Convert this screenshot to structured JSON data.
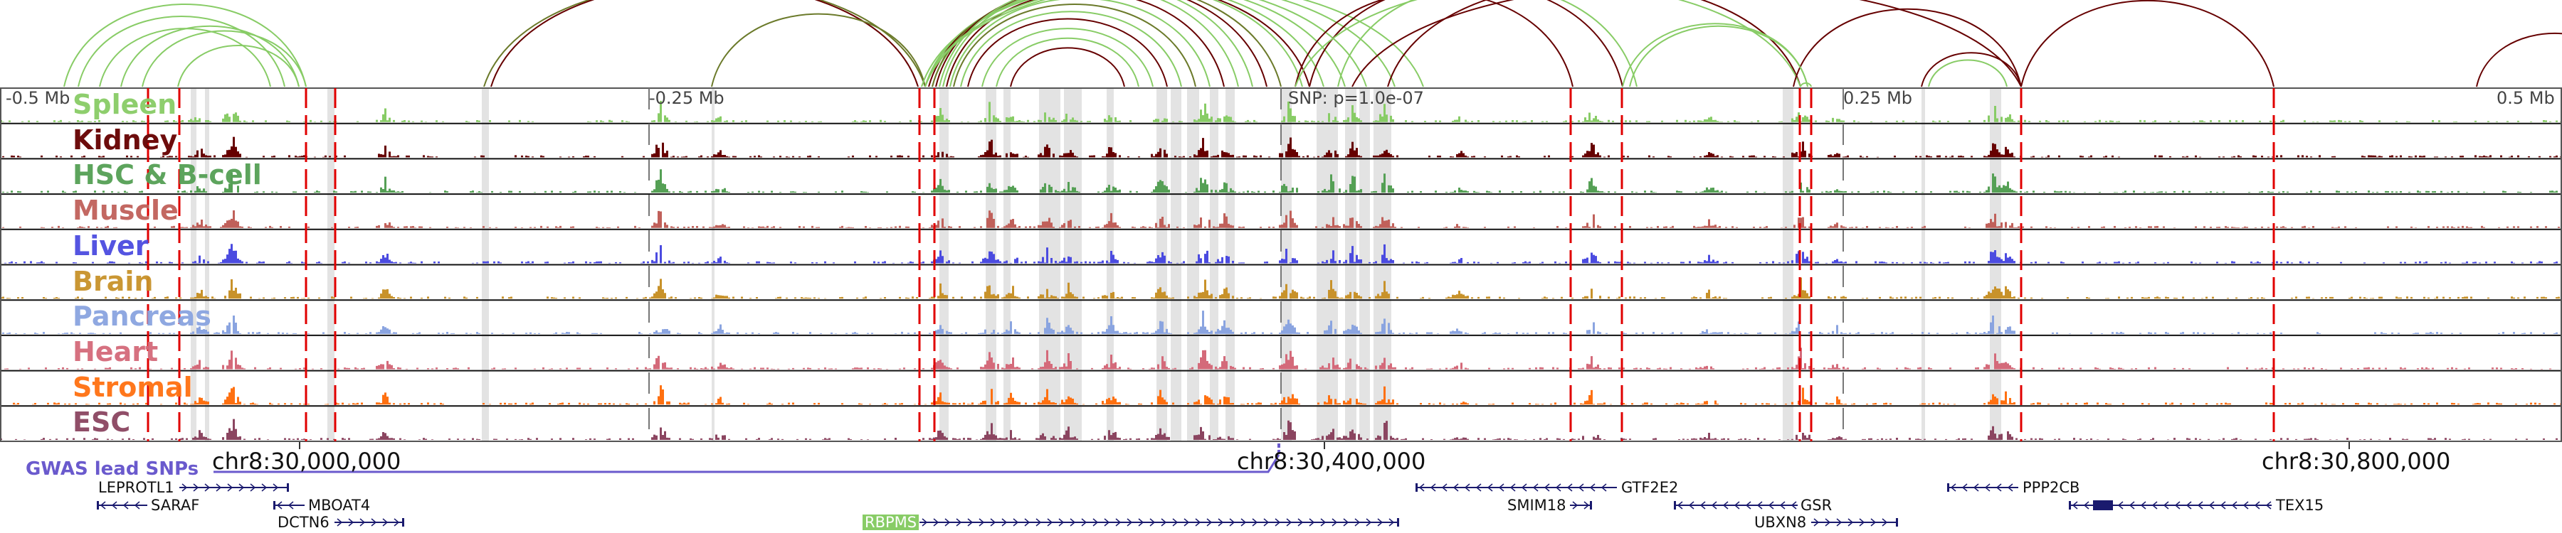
{
  "scale_labels": {
    "left": "-0.5 Mb",
    "left_mid": "-0.25 Mb",
    "snp": "SNP: p=1.0e-07",
    "right_mid": "0.25 Mb",
    "right": "0.5 Mb"
  },
  "tracks": [
    {
      "name": "Spleen",
      "color": "#88cc66"
    },
    {
      "name": "Kidney",
      "color": "#660000"
    },
    {
      "name": "HSC & B-cell",
      "color": "#55a055"
    },
    {
      "name": "Muscle",
      "color": "#c0605a"
    },
    {
      "name": "Liver",
      "color": "#4b4be0"
    },
    {
      "name": "Brain",
      "color": "#c8922a"
    },
    {
      "name": "Pancreas",
      "color": "#8aa4e0"
    },
    {
      "name": "Heart",
      "color": "#d46a7a"
    },
    {
      "name": "Stromal",
      "color": "#ff7010"
    },
    {
      "name": "ESC",
      "color": "#8b4560"
    }
  ],
  "coordinates": [
    "chr8:30,000,000",
    "chr8:30,400,000",
    "chr8:30,800,000"
  ],
  "gwas_label": "GWAS lead SNPs",
  "genes": [
    "LEPROTL1",
    "SARAF",
    "MBOAT4",
    "DCTN6",
    "RBPMS",
    "GTF2E2",
    "SMIM18",
    "GSR",
    "UBXN8",
    "PPP2CB",
    "TEX15"
  ],
  "colors": {
    "arc_green": "#88cc66",
    "arc_red": "#660000",
    "arc_olive": "#6b7a2a",
    "snp_line": "#e00000",
    "gwas": "#6a5acd",
    "gene": "#1a1a6e"
  }
}
